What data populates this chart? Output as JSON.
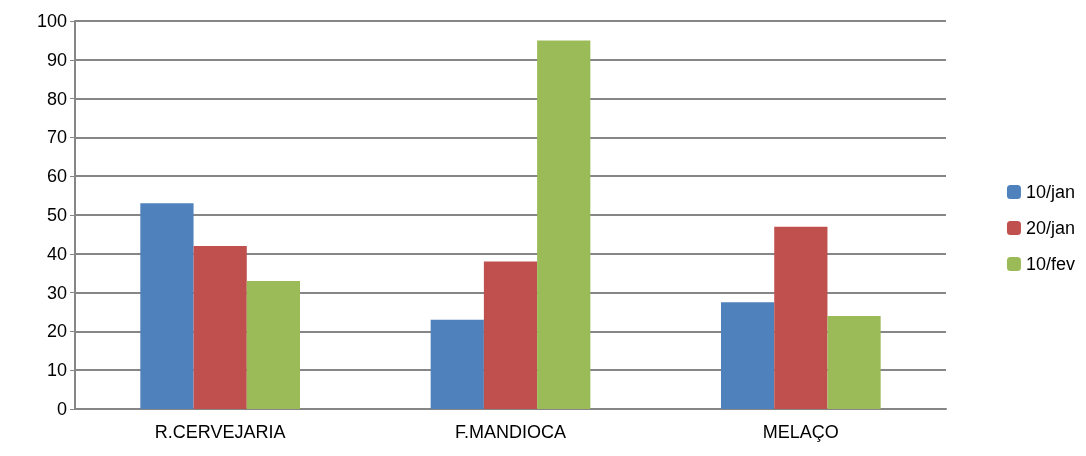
{
  "chart_data": {
    "type": "bar",
    "categories": [
      "R.CERVEJARIA",
      "F.MANDIOCA",
      "MELAÇO"
    ],
    "series": [
      {
        "name": "10/jan",
        "color": "#4f81bd",
        "values": [
          53,
          23,
          27.5
        ]
      },
      {
        "name": "20/jan",
        "color": "#c0504d",
        "values": [
          42,
          38,
          47
        ]
      },
      {
        "name": "10/fev",
        "color": "#9bbb59",
        "values": [
          33,
          95,
          24
        ]
      }
    ],
    "ylim": [
      0,
      100
    ],
    "yticks": [
      0,
      10,
      20,
      30,
      40,
      50,
      60,
      70,
      80,
      90,
      100
    ],
    "grid": "y",
    "legend": "right"
  }
}
